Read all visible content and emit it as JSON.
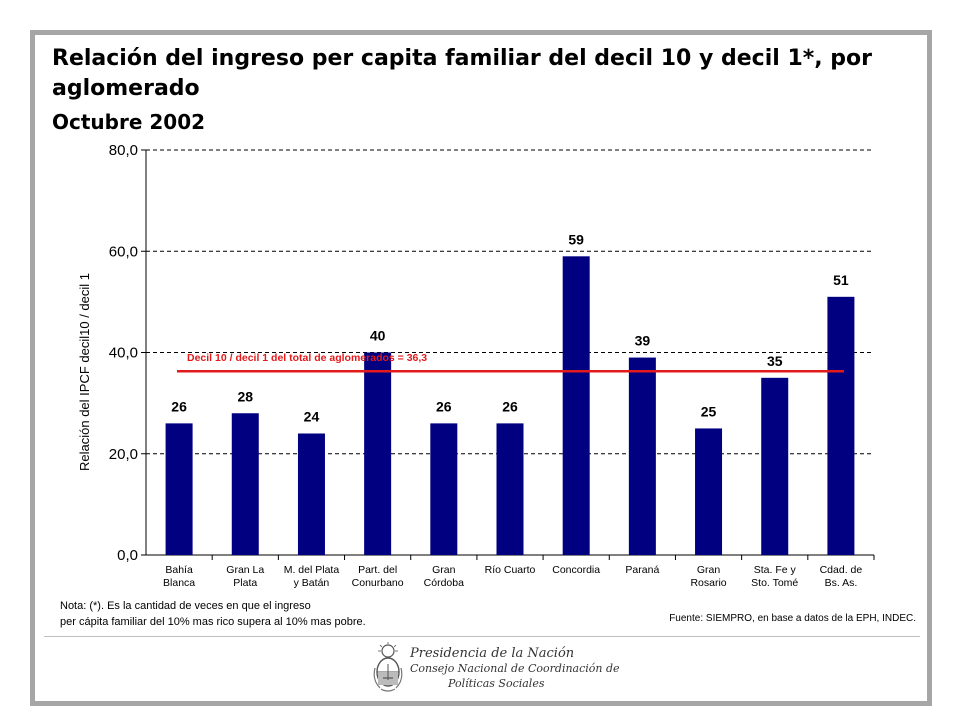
{
  "chart_data": {
    "type": "bar",
    "title": "Relación del ingreso per capita familiar del decil 10 y decil 1*, por aglomerado",
    "subtitle": "Octubre 2002",
    "ylabel": "Relación del IPCF decil10 / decil 1",
    "xlabel": "",
    "ylim": [
      0,
      80
    ],
    "yticks": [
      "0,0",
      "20,0",
      "40,0",
      "60,0",
      "80,0"
    ],
    "ytick_values": [
      0,
      20,
      40,
      60,
      80
    ],
    "grid": true,
    "categories": [
      [
        "Bahía",
        "Blanca"
      ],
      [
        "Gran La",
        "Plata"
      ],
      [
        "M. del Plata",
        "y Batán"
      ],
      [
        "Part. del",
        "Conurbano"
      ],
      [
        "Gran",
        "Córdoba"
      ],
      [
        "Río Cuarto"
      ],
      [
        "Concordia"
      ],
      [
        "Paraná"
      ],
      [
        "Gran",
        "Rosario"
      ],
      [
        "Sta. Fe y",
        "Sto. Tomé"
      ],
      [
        "Cdad. de",
        "Bs. As."
      ]
    ],
    "values": [
      26,
      28,
      24,
      40,
      26,
      26,
      59,
      39,
      25,
      35,
      51
    ],
    "data_labels": [
      "26",
      "28",
      "24",
      "40",
      "26",
      "26",
      "59",
      "39",
      "25",
      "35",
      "51"
    ],
    "bar_color": "#000080",
    "reference_line": {
      "value": 36.3,
      "label": "Decil 10 / decil 1 del total de aglomerados = 36,3",
      "color": "#e31a1c"
    }
  },
  "note": {
    "line1": "Nota: (*). Es la cantidad de veces en que el ingreso",
    "line2": "per cápita familiar del 10% mas rico supera al 10% mas pobre."
  },
  "source": "Fuente: SIEMPRO, en base a datos de la EPH, INDEC.",
  "footer": {
    "line1": "Presidencia de la Nación",
    "line2": "Consejo Nacional de Coordinación de",
    "line3": "Políticas Sociales",
    "seal_icon": "coat-of-arms-icon"
  }
}
